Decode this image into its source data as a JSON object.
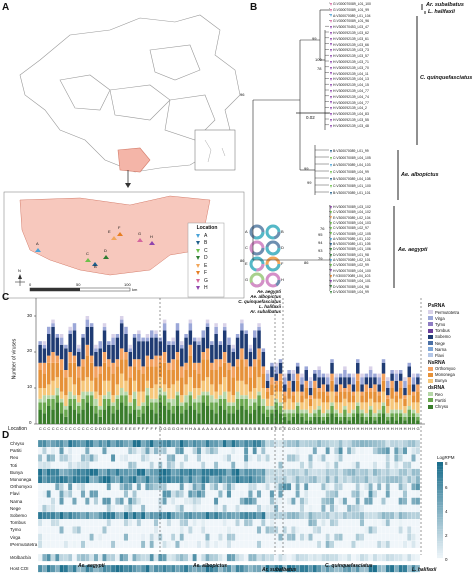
{
  "panels": {
    "a": "A",
    "b": "B",
    "c": "C",
    "d": "D"
  },
  "map": {
    "scale_ticks": [
      "0",
      "50",
      "100"
    ],
    "scale_unit": "km",
    "compass": "N",
    "site_letters": [
      "A",
      "B",
      "C",
      "D",
      "E",
      "F",
      "G",
      "H"
    ],
    "donut_letters": [
      "A",
      "B",
      "C",
      "D",
      "E",
      "F",
      "G",
      "H"
    ],
    "species_legend": [
      "Ae. aegypti",
      "Ae. albopictus",
      "C. quinquefasciatus",
      "L. halifaxii",
      "Ar. subalbatus"
    ],
    "species_colors": [
      "#6e8fb0",
      "#54b8c7",
      "#d48fc8",
      "#a8d08d",
      "#f2a65a"
    ],
    "location_title": "Location",
    "location_items": [
      {
        "id": "A",
        "color": "#4aa3d8"
      },
      {
        "id": "B",
        "color": "#1f5f8b"
      },
      {
        "id": "C",
        "color": "#6cc04a"
      },
      {
        "id": "D",
        "color": "#2e7d32"
      },
      {
        "id": "E",
        "color": "#f2a65a"
      },
      {
        "id": "F",
        "color": "#e67e22"
      },
      {
        "id": "G",
        "color": "#d4669e"
      },
      {
        "id": "H",
        "color": "#8e44ad"
      }
    ]
  },
  "tree": {
    "scale_label": "0.02",
    "bootstrap": [
      "96",
      "99",
      "100",
      "78",
      "86",
      "99",
      "99",
      "76",
      "95",
      "94",
      "93",
      "79",
      "86"
    ],
    "clades": [
      "Ar. subalbatus",
      "L. halifaxii",
      "C. quinquefasciatus",
      "Ae. albopictus",
      "Ae. aegypti"
    ],
    "leaves": [
      "G:V300070089_L01_100",
      "G:V300070089_L01_99",
      "A:V300070089_L01_104",
      "G:V300070089_L01_96",
      "H:V300070453_L03_47",
      "H:V300092139_L03_62",
      "H:V300092139_L03_61",
      "H:V300092139_L03_66",
      "H:V300092139_L03_73",
      "H:V300092139_L03_57",
      "H:V300092139_L03_71",
      "H:V300092139_L03_70",
      "H:V300092139_L04_11",
      "H:V300092139_L04_13",
      "H:V300092139_L04_15",
      "H:V300092139_L04_77",
      "H:V300092139_L04_74",
      "H:V300092139_L04_77",
      "H:V300092139_L04_2",
      "H:V300092139_L04_83",
      "H:V300092139_L03_55",
      "H:V300092139_L03_48",
      "B:V300070089_L01_99",
      "C:V300070089_L04_105",
      "A:V300070089_L04_103",
      "C:V300070089_L04_99",
      "B:V300070089_L04_108",
      "C:V300070089_L01_100",
      "B:V300070089_L01_101",
      "H:V300070089_L03_102",
      "C:V300070089_L04_102",
      "E:V300070089_L02_104",
      "C:V300070089_L04_103",
      "C:V300070089_L02_97",
      "C:V300070089_L02_105",
      "A:V300070089_L01_102",
      "B:V300070089_L01_105",
      "D:V300070089_L01_106",
      "D:V300070089_L01_98",
      "A:V300070089_L02_101",
      "C:V300070089_L02_99",
      "H:V300070089_L04_100",
      "F:V300070089_L04_103",
      "H:V300070089_L04_101",
      "D:V300070089_L04_98",
      "D:V300070089_L04_99"
    ]
  },
  "chart_data": [
    {
      "type": "bar",
      "title": "",
      "ylabel": "Number of viruses",
      "xlabel": "Location",
      "ylim": [
        0,
        35
      ],
      "yticks": [
        "0",
        "10",
        "20",
        "30"
      ],
      "categories": [
        "C",
        "C",
        "C",
        "C",
        "C",
        "C",
        "C",
        "C",
        "C",
        "C",
        "C",
        "C",
        "C",
        "D",
        "D",
        "D",
        "D",
        "D",
        "E",
        "E",
        "E",
        "E",
        "E",
        "F",
        "F",
        "F",
        "F",
        "F",
        "G",
        "G",
        "G",
        "G",
        "G",
        "H",
        "H",
        "H",
        "A",
        "A",
        "A",
        "A",
        "A",
        "A",
        "A",
        "A",
        "A",
        "B",
        "B",
        "B",
        "B",
        "B",
        "B",
        "B",
        "B",
        "E",
        "E",
        "E",
        "E",
        "E",
        "G",
        "G",
        "G",
        "H",
        "H",
        "G",
        "H",
        "H",
        "H",
        "H",
        "H",
        "H",
        "H",
        "H",
        "H",
        "H",
        "H",
        "H",
        "H",
        "H",
        "H",
        "H",
        "H",
        "H",
        "H",
        "H",
        "H",
        "H",
        "H",
        "H",
        "G"
      ],
      "series": [
        {
          "name": "Chryso",
          "color": "#3a7d2c",
          "values": [
            4,
            3,
            5,
            4,
            6,
            3,
            2,
            5,
            4,
            3,
            4,
            6,
            5,
            3,
            2,
            4,
            5,
            3,
            4,
            6,
            5,
            3,
            4,
            2,
            3,
            5,
            4,
            3,
            6,
            5,
            4,
            3,
            5,
            3,
            4,
            5,
            4,
            3,
            6,
            5,
            4,
            3,
            5,
            4,
            3,
            3,
            4,
            5,
            4,
            3,
            4,
            5,
            3,
            2,
            3,
            4,
            3,
            2,
            1,
            2,
            3,
            2,
            1,
            1,
            2,
            2,
            1,
            2,
            3,
            2,
            1,
            2,
            1,
            2,
            3,
            2,
            1,
            2,
            1,
            2,
            3,
            1,
            2,
            1,
            2,
            1,
            2,
            2,
            1
          ]
        },
        {
          "name": "Partiti",
          "color": "#6aa84f",
          "values": [
            2,
            3,
            2,
            3,
            2,
            3,
            2,
            2,
            3,
            2,
            3,
            2,
            3,
            2,
            2,
            3,
            2,
            2,
            3,
            2,
            3,
            2,
            3,
            2,
            2,
            3,
            2,
            3,
            2,
            3,
            2,
            2,
            3,
            2,
            2,
            3,
            2,
            3,
            2,
            3,
            2,
            3,
            2,
            3,
            2,
            2,
            3,
            2,
            3,
            2,
            2,
            3,
            2,
            2,
            1,
            2,
            2,
            1,
            2,
            1,
            2,
            1,
            2,
            1,
            1,
            2,
            1,
            1,
            2,
            1,
            1,
            2,
            1,
            1,
            2,
            1,
            1,
            2,
            1,
            1,
            2,
            1,
            1,
            2,
            1,
            1,
            2,
            1,
            1
          ]
        },
        {
          "name": "Reo",
          "color": "#b6d7a8",
          "values": [
            1,
            2,
            1,
            1,
            2,
            1,
            1,
            2,
            1,
            1,
            2,
            1,
            1,
            2,
            1,
            1,
            2,
            1,
            1,
            2,
            1,
            1,
            2,
            1,
            1,
            2,
            1,
            1,
            2,
            1,
            1,
            2,
            1,
            1,
            2,
            1,
            1,
            2,
            1,
            1,
            2,
            1,
            1,
            2,
            1,
            1,
            2,
            1,
            1,
            2,
            1,
            1,
            2,
            1,
            1,
            1,
            1,
            1,
            1,
            1,
            1,
            1,
            1,
            1,
            1,
            1,
            1,
            1,
            1,
            1,
            1,
            1,
            1,
            1,
            1,
            1,
            1,
            1,
            1,
            1,
            1,
            1,
            1,
            1,
            1,
            1,
            1,
            1,
            1
          ]
        },
        {
          "name": "Bunya",
          "color": "#f6c77a",
          "values": [
            3,
            2,
            3,
            4,
            3,
            2,
            3,
            4,
            3,
            2,
            3,
            4,
            3,
            2,
            3,
            4,
            3,
            2,
            3,
            4,
            3,
            2,
            3,
            4,
            3,
            2,
            3,
            4,
            3,
            2,
            3,
            4,
            3,
            2,
            3,
            4,
            3,
            2,
            3,
            4,
            3,
            2,
            3,
            4,
            3,
            2,
            3,
            4,
            3,
            2,
            3,
            4,
            3,
            2,
            3,
            2,
            3,
            2,
            3,
            2,
            3,
            2,
            3,
            2,
            3,
            2,
            3,
            2,
            3,
            2,
            3,
            2,
            3,
            2,
            3,
            2,
            3,
            2,
            3,
            2,
            3,
            2,
            3,
            2,
            3,
            2,
            3,
            2,
            3
          ]
        },
        {
          "name": "Mononega",
          "color": "#e69138",
          "values": [
            5,
            4,
            6,
            5,
            4,
            6,
            5,
            4,
            6,
            5,
            4,
            6,
            5,
            4,
            6,
            5,
            4,
            6,
            5,
            4,
            6,
            5,
            4,
            6,
            5,
            4,
            6,
            5,
            4,
            6,
            5,
            4,
            6,
            5,
            4,
            6,
            5,
            4,
            6,
            5,
            4,
            6,
            5,
            4,
            6,
            5,
            4,
            6,
            5,
            4,
            6,
            5,
            4,
            2,
            3,
            2,
            3,
            2,
            3,
            2,
            3,
            2,
            3,
            2,
            3,
            2,
            3,
            2,
            3,
            2,
            3,
            2,
            3,
            2,
            3,
            2,
            3,
            2,
            3,
            2,
            3,
            2,
            3,
            2,
            3,
            2,
            3,
            2,
            3
          ]
        },
        {
          "name": "Orthomyxo",
          "color": "#f4a261",
          "values": [
            2,
            3,
            2,
            3,
            2,
            3,
            2,
            3,
            2,
            3,
            2,
            3,
            2,
            3,
            2,
            3,
            2,
            3,
            2,
            3,
            2,
            3,
            2,
            3,
            2,
            3,
            2,
            3,
            2,
            3,
            2,
            3,
            2,
            3,
            2,
            3,
            2,
            3,
            2,
            3,
            2,
            3,
            2,
            3,
            2,
            3,
            2,
            3,
            2,
            3,
            2,
            3,
            2,
            1,
            2,
            1,
            2,
            1,
            2,
            1,
            2,
            1,
            2,
            1,
            2,
            1,
            2,
            1,
            2,
            1,
            2,
            1,
            2,
            1,
            2,
            1,
            2,
            1,
            2,
            1,
            2,
            1,
            2,
            1,
            2,
            1,
            2,
            1,
            2
          ]
        },
        {
          "name": "Sobemo",
          "color": "#1f3b73",
          "values": [
            5,
            4,
            6,
            7,
            5,
            4,
            6,
            5,
            7,
            4,
            6,
            5,
            8,
            4,
            5,
            6,
            4,
            5,
            6,
            7,
            5,
            4,
            6,
            5,
            7,
            4,
            6,
            5,
            4,
            6,
            5,
            4,
            6,
            5,
            7,
            4,
            6,
            5,
            4,
            6,
            5,
            7,
            4,
            6,
            5,
            4,
            6,
            5,
            7,
            4,
            6,
            5,
            4,
            2,
            3,
            2,
            3,
            2,
            2,
            3,
            2,
            2,
            3,
            2,
            2,
            3,
            2,
            2,
            3,
            2,
            2,
            3,
            2,
            2,
            3,
            2,
            2,
            3,
            2,
            2,
            3,
            2,
            2,
            3,
            2,
            2,
            3,
            2,
            2
          ]
        },
        {
          "name": "Virga",
          "color": "#9ba7d8",
          "values": [
            1,
            1,
            2,
            1,
            1,
            2,
            1,
            1,
            2,
            1,
            1,
            2,
            1,
            1,
            2,
            1,
            1,
            2,
            1,
            1,
            2,
            1,
            1,
            2,
            1,
            1,
            2,
            1,
            1,
            2,
            1,
            1,
            2,
            1,
            1,
            2,
            1,
            1,
            2,
            1,
            1,
            2,
            1,
            1,
            2,
            1,
            1,
            2,
            1,
            1,
            2,
            1,
            1,
            2,
            1,
            2,
            1,
            2,
            1,
            2,
            1,
            2,
            1,
            2,
            1,
            2,
            1,
            2,
            1,
            2,
            1,
            2,
            1,
            2,
            1,
            2,
            1,
            2,
            1,
            2,
            1,
            2,
            1,
            2,
            1,
            2,
            1,
            2,
            1
          ]
        },
        {
          "name": "Permutotetra",
          "color": "#d9d2e9",
          "values": [
            0,
            1,
            0,
            1,
            0,
            1,
            0,
            1,
            0,
            1,
            0,
            1,
            0,
            1,
            0,
            1,
            0,
            1,
            0,
            1,
            0,
            1,
            0,
            1,
            0,
            1,
            0,
            1,
            0,
            1,
            0,
            1,
            0,
            1,
            0,
            1,
            0,
            1,
            0,
            1,
            0,
            1,
            0,
            1,
            0,
            1,
            0,
            1,
            0,
            1,
            0,
            1,
            0,
            1,
            0,
            1,
            0,
            1,
            0,
            1,
            0,
            1,
            0,
            1,
            0,
            1,
            0,
            1,
            0,
            1,
            0,
            1,
            0,
            1,
            0,
            1,
            0,
            1,
            0,
            1,
            0,
            1,
            0,
            1,
            0,
            1,
            0,
            1,
            0
          ]
        }
      ],
      "legend": {
        "groups": [
          {
            "title": "PsRNA",
            "items": [
              "Permutotetra",
              "Virga",
              "Tymo",
              "Tombus",
              "Sobemo",
              "Nege",
              "Narna",
              "Flavi"
            ]
          },
          {
            "title": "NsRNA",
            "items": [
              "Orthomyxo",
              "Mononega",
              "Bunya"
            ]
          },
          {
            "title": "dsRNA",
            "items": [
              "Reo",
              "Partiti",
              "Chryso"
            ]
          }
        ],
        "colors": {
          "Permutotetra": "#d9d2e9",
          "Virga": "#9ba7d8",
          "Tymo": "#8e7cc3",
          "Tombus": "#6a3d9a",
          "Sobemo": "#1f3b73",
          "Nege": "#4a6fa5",
          "Narna": "#7ea6d6",
          "Flavi": "#b4c7e7",
          "Orthomyxo": "#f4a261",
          "Mononega": "#e69138",
          "Bunya": "#f6c77a",
          "Reo": "#b6d7a8",
          "Partiti": "#6aa84f",
          "Chryso": "#3a7d2c"
        }
      }
    },
    {
      "type": "heatmap",
      "rows": [
        "Chryso",
        "Partiti",
        "Reo",
        "Toti",
        "Bunya",
        "Mononega",
        "Orthomyxo",
        "Flavi",
        "Narna",
        "Nege",
        "Sobemo",
        "Tombus",
        "Tymo",
        "Virga",
        "IPermutotetra"
      ],
      "extra_rows": [
        "Wolbachia",
        "Host COI"
      ],
      "colorbar_title": "LogRPM",
      "colorbar_ticks": [
        "8",
        "6",
        "4",
        "2",
        "0"
      ],
      "vmin": 0,
      "vmax": 8,
      "group_labels": [
        "Ae. aegypti",
        "Ae. albopictus",
        "Ar. subalbatus",
        "C. quinquefasciatus",
        "L. halifaxii"
      ]
    }
  ]
}
